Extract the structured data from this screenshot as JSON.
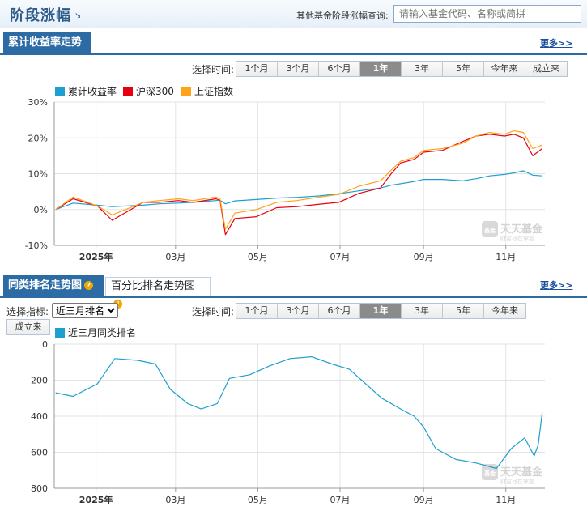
{
  "header": {
    "title": "阶段涨幅",
    "title_arrow": "↘",
    "query_label": "其他基金阶段涨幅查询:",
    "search_placeholder": "请输入基金代码、名称或简拼"
  },
  "section1": {
    "tab_label": "累计收益率走势",
    "more_label": "更多>>",
    "range_label": "选择时间:",
    "ranges": [
      "1个月",
      "3个月",
      "6个月",
      "1年",
      "3年",
      "5年",
      "今年来",
      "成立来"
    ],
    "active_range": "1年"
  },
  "section2": {
    "tab_active_label": "同类排名走势图",
    "tab_inactive_label": "百分比排名走势图",
    "more_label": "更多>>",
    "indicator_label": "选择指标:",
    "indicator_value": "近三月排名",
    "range_label": "选择时间:",
    "ranges": [
      "1个月",
      "3个月",
      "6个月",
      "1年",
      "3年",
      "5年",
      "今年来"
    ],
    "active_range": "1年",
    "extra_button": "成立来"
  },
  "watermark": {
    "brand": "天天基金",
    "slogan": "财富尽在掌握",
    "icon_text": "基金"
  },
  "colors": {
    "brand": "#2c6ba4",
    "series_blue": "#1f9fd0",
    "series_red": "#e60012",
    "series_orange": "#ffa31a"
  },
  "chart_data": [
    {
      "type": "line",
      "title": "",
      "ylabel": "",
      "ylim": [
        -10,
        30
      ],
      "y_ticks": [
        "30%",
        "20%",
        "10%",
        "0%",
        "-10%"
      ],
      "x_ticks": [
        "2025年",
        "03月",
        "05月",
        "07月",
        "09月",
        "11月"
      ],
      "legend_position": "top-left",
      "grid": true,
      "x": [
        "2024-12-02",
        "2024-12-15",
        "2025-01-02",
        "2025-01-13",
        "2025-02-05",
        "2025-02-17",
        "2025-03-03",
        "2025-03-14",
        "2025-03-31",
        "2025-04-03",
        "2025-04-07",
        "2025-04-14",
        "2025-04-30",
        "2025-05-15",
        "2025-05-30",
        "2025-06-16",
        "2025-06-30",
        "2025-07-15",
        "2025-07-31",
        "2025-08-08",
        "2025-08-15",
        "2025-08-25",
        "2025-09-01",
        "2025-09-15",
        "2025-09-30",
        "2025-10-10",
        "2025-10-20",
        "2025-10-31",
        "2025-11-07",
        "2025-11-14",
        "2025-11-21",
        "2025-11-28"
      ],
      "series": [
        {
          "name": "累计收益率",
          "color": "#1f9fd0",
          "values": [
            0.0,
            1.8,
            1.2,
            0.8,
            1.2,
            1.6,
            1.8,
            2.0,
            2.5,
            2.6,
            1.6,
            2.4,
            2.8,
            3.2,
            3.4,
            3.8,
            4.4,
            5.2,
            6.0,
            6.8,
            7.2,
            7.8,
            8.4,
            8.4,
            8.0,
            8.6,
            9.4,
            9.8,
            10.2,
            10.8,
            9.6,
            9.4
          ]
        },
        {
          "name": "沪深300",
          "color": "#e60012",
          "values": [
            0.0,
            3.0,
            1.0,
            -3.0,
            2.0,
            2.0,
            2.5,
            2.0,
            3.0,
            2.5,
            -7.0,
            -2.5,
            -2.0,
            0.5,
            0.8,
            1.5,
            2.0,
            4.5,
            6.0,
            10.0,
            13.0,
            14.0,
            16.0,
            16.5,
            19.0,
            20.5,
            21.0,
            20.5,
            21.0,
            20.0,
            15.0,
            17.0
          ]
        },
        {
          "name": "上证指数",
          "color": "#ffa31a",
          "values": [
            0.0,
            3.5,
            1.0,
            -1.5,
            2.0,
            2.5,
            3.0,
            2.5,
            3.5,
            3.0,
            -5.5,
            -1.0,
            0.0,
            2.0,
            2.5,
            3.5,
            4.2,
            6.5,
            8.0,
            11.0,
            13.5,
            14.5,
            16.5,
            17.0,
            18.5,
            20.5,
            21.5,
            21.0,
            22.0,
            21.5,
            17.0,
            18.0
          ]
        }
      ]
    },
    {
      "type": "line",
      "title": "",
      "ylabel": "",
      "ylim": [
        0,
        800
      ],
      "y_reversed": true,
      "y_ticks": [
        "0",
        "200",
        "400",
        "600",
        "800"
      ],
      "x_ticks": [
        "2025年",
        "03月",
        "05月",
        "07月",
        "09月",
        "11月"
      ],
      "legend_position": "top-left",
      "grid": true,
      "x": [
        "2024-12-02",
        "2024-12-15",
        "2025-01-02",
        "2025-01-15",
        "2025-02-01",
        "2025-02-14",
        "2025-02-25",
        "2025-03-10",
        "2025-03-20",
        "2025-04-01",
        "2025-04-10",
        "2025-04-25",
        "2025-05-10",
        "2025-05-25",
        "2025-06-10",
        "2025-06-25",
        "2025-07-08",
        "2025-07-20",
        "2025-08-01",
        "2025-08-15",
        "2025-08-25",
        "2025-09-01",
        "2025-09-10",
        "2025-09-25",
        "2025-10-10",
        "2025-10-25",
        "2025-11-05",
        "2025-11-15",
        "2025-11-22",
        "2025-11-25",
        "2025-11-28"
      ],
      "series": [
        {
          "name": "近三月同类排名",
          "color": "#1f9fd0",
          "values": [
            270,
            290,
            220,
            80,
            90,
            110,
            250,
            330,
            360,
            330,
            190,
            170,
            120,
            80,
            70,
            110,
            140,
            220,
            300,
            360,
            400,
            460,
            580,
            640,
            660,
            690,
            580,
            520,
            620,
            560,
            380
          ]
        }
      ]
    }
  ]
}
